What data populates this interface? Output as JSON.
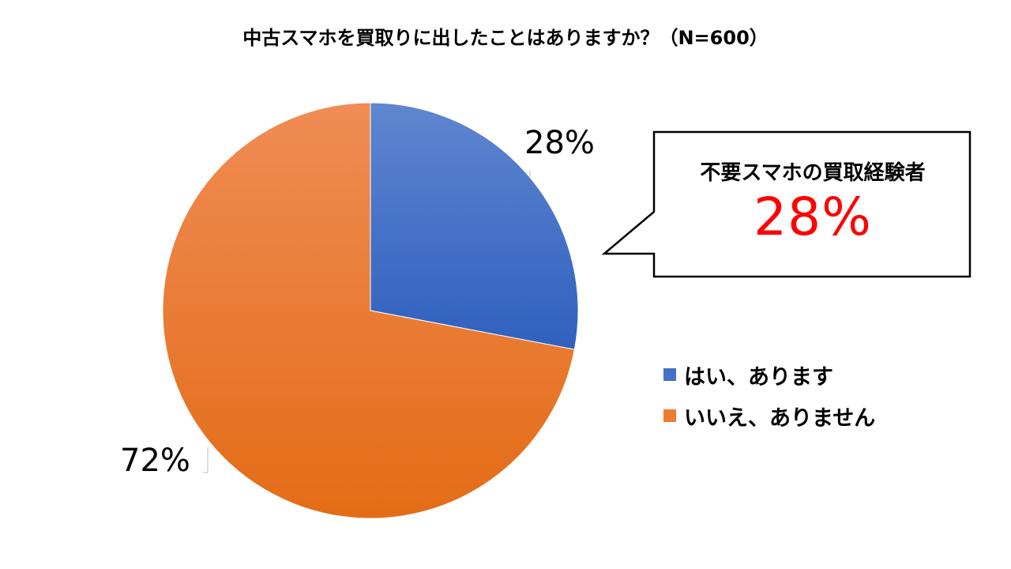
{
  "chart_data": {
    "type": "pie",
    "title": "中古スマホを買取りに出したことはありますか？（N=600）",
    "categories": [
      "はい、あります",
      "いいえ、ありません"
    ],
    "values": [
      28,
      72
    ],
    "data_labels": [
      "28%",
      "72%"
    ],
    "colors": [
      "#4472C4",
      "#ED7D31"
    ],
    "legend_position": "right",
    "annotation": {
      "title": "不要スマホの買取経験者",
      "value": "28%",
      "value_color": "#FF0000"
    }
  }
}
